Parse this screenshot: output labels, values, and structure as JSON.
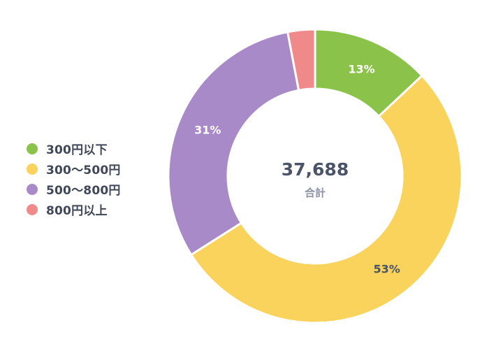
{
  "chart_data": {
    "type": "pie",
    "variant": "donut",
    "categories": [
      "300円以下",
      "300〜500円",
      "500〜800円",
      "800円以上"
    ],
    "values": [
      13,
      53,
      31,
      3
    ],
    "unit": "%",
    "data_labels": [
      "13%",
      "53%",
      "31%",
      ""
    ],
    "colors": [
      "#8bc34a",
      "#fad35c",
      "#a98ac8",
      "#f08a8a"
    ],
    "center_value": "37,688",
    "center_label": "合計",
    "legend_position": "left",
    "start_angle_deg": 0,
    "direction": "clockwise"
  }
}
